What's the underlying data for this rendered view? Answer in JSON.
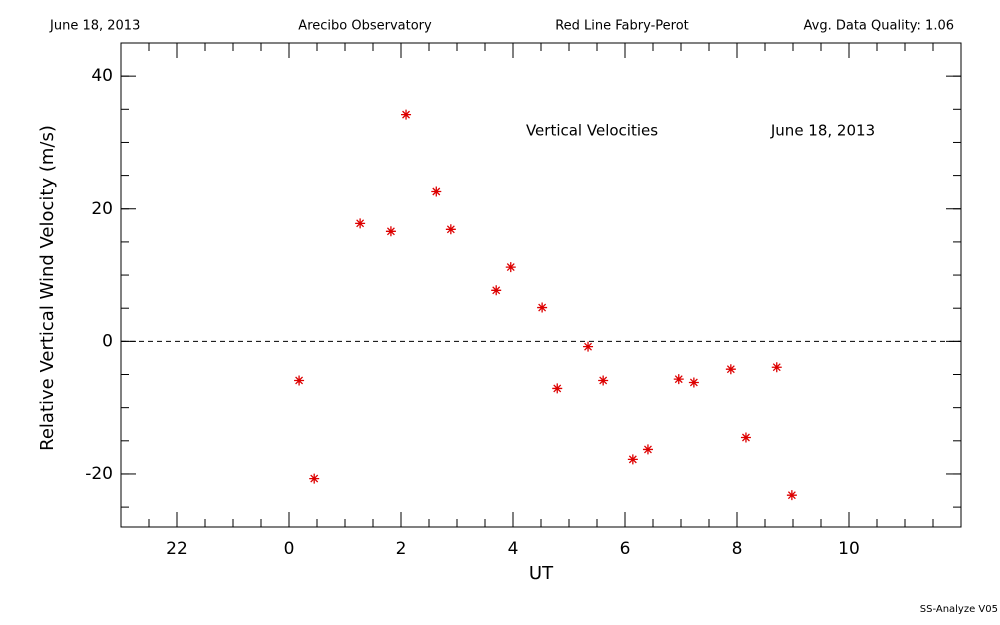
{
  "chart_data": {
    "type": "scatter",
    "header": [
      "June 18, 2013",
      "Arecibo Observatory",
      "Red Line Fabry-Perot",
      "Avg. Data Quality: 1.06"
    ],
    "annotations": [
      "Vertical Velocities",
      "June 18, 2013"
    ],
    "footer": "SS-Analyze V05",
    "x_label": "UT",
    "y_label": "Relative Vertical Wind Velocity (m/s)",
    "xlim": [
      -3,
      12
    ],
    "ylim": [
      -28,
      45
    ],
    "xticks": [
      {
        "value": -2,
        "label": "22"
      },
      0,
      2,
      4,
      6,
      8,
      10
    ],
    "yticks": [
      -20,
      0,
      20,
      40
    ],
    "hline": 0,
    "color": "#dd0000",
    "x": [
      0.18,
      0.45,
      1.27,
      1.82,
      2.09,
      2.63,
      2.89,
      3.7,
      3.96,
      4.52,
      4.79,
      5.34,
      5.61,
      6.14,
      6.41,
      6.96,
      7.23,
      7.89,
      8.16,
      8.71,
      8.98
    ],
    "values": [
      -5.9,
      -20.7,
      17.8,
      16.6,
      34.2,
      22.6,
      16.9,
      7.7,
      11.2,
      5.1,
      -7.1,
      -0.8,
      -5.9,
      -17.8,
      -16.3,
      -5.7,
      -6.2,
      -4.2,
      -14.5,
      -3.9,
      -23.2
    ]
  }
}
